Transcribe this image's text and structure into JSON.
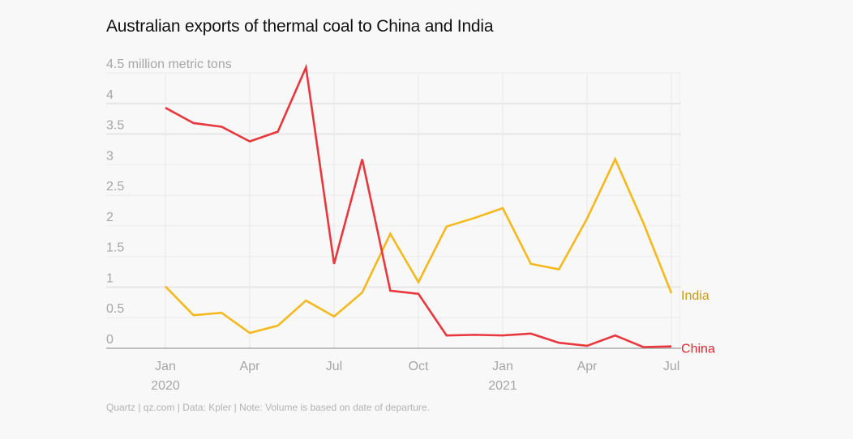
{
  "title": "Australian exports of thermal coal to China and India",
  "footer": "Quartz | qz.com | Data: Kpler | Note: Volume is based on date of departure.",
  "chart_data": {
    "type": "line",
    "title": "Australian exports of thermal coal to China and India",
    "xlabel": "",
    "ylabel": "million metric tons",
    "ylim": [
      0,
      4.5
    ],
    "grid": true,
    "legend": "direct labels at right end of lines",
    "x": [
      "2020-01",
      "2020-02",
      "2020-03",
      "2020-04",
      "2020-05",
      "2020-06",
      "2020-07",
      "2020-08",
      "2020-09",
      "2020-10",
      "2020-11",
      "2020-12",
      "2021-01",
      "2021-02",
      "2021-03",
      "2021-04",
      "2021-05",
      "2021-06",
      "2021-07"
    ],
    "y_ticks": [
      {
        "value": 0,
        "label": "0"
      },
      {
        "value": 0.5,
        "label": "0.5"
      },
      {
        "value": 1,
        "label": "1"
      },
      {
        "value": 1.5,
        "label": "1.5"
      },
      {
        "value": 2,
        "label": "2"
      },
      {
        "value": 2.5,
        "label": "2.5"
      },
      {
        "value": 3,
        "label": "3"
      },
      {
        "value": 3.5,
        "label": "3.5"
      },
      {
        "value": 4,
        "label": "4"
      },
      {
        "value": 4.5,
        "label": "4.5 million metric tons"
      }
    ],
    "x_ticks": [
      {
        "index": 0,
        "label": "Jan",
        "sublabel": "2020"
      },
      {
        "index": 3,
        "label": "Apr",
        "sublabel": ""
      },
      {
        "index": 6,
        "label": "Jul",
        "sublabel": ""
      },
      {
        "index": 9,
        "label": "Oct",
        "sublabel": ""
      },
      {
        "index": 12,
        "label": "Jan",
        "sublabel": "2021"
      },
      {
        "index": 15,
        "label": "Apr",
        "sublabel": ""
      },
      {
        "index": 18,
        "label": "Jul",
        "sublabel": ""
      }
    ],
    "series": [
      {
        "name": "China",
        "color": "#e8383d",
        "label_color": "#e0262f",
        "values": [
          3.93,
          3.68,
          3.62,
          3.38,
          3.54,
          4.59,
          1.38,
          3.09,
          0.94,
          0.89,
          0.21,
          0.22,
          0.21,
          0.24,
          0.09,
          0.04,
          0.21,
          0.02,
          0.03
        ]
      },
      {
        "name": "India",
        "color": "#f5b91e",
        "label_color": "#c99a1e",
        "values": [
          1.01,
          0.54,
          0.58,
          0.25,
          0.37,
          0.78,
          0.52,
          0.91,
          1.87,
          1.08,
          1.99,
          2.13,
          2.29,
          1.38,
          1.29,
          2.12,
          3.09,
          2.05,
          0.9
        ]
      }
    ]
  }
}
